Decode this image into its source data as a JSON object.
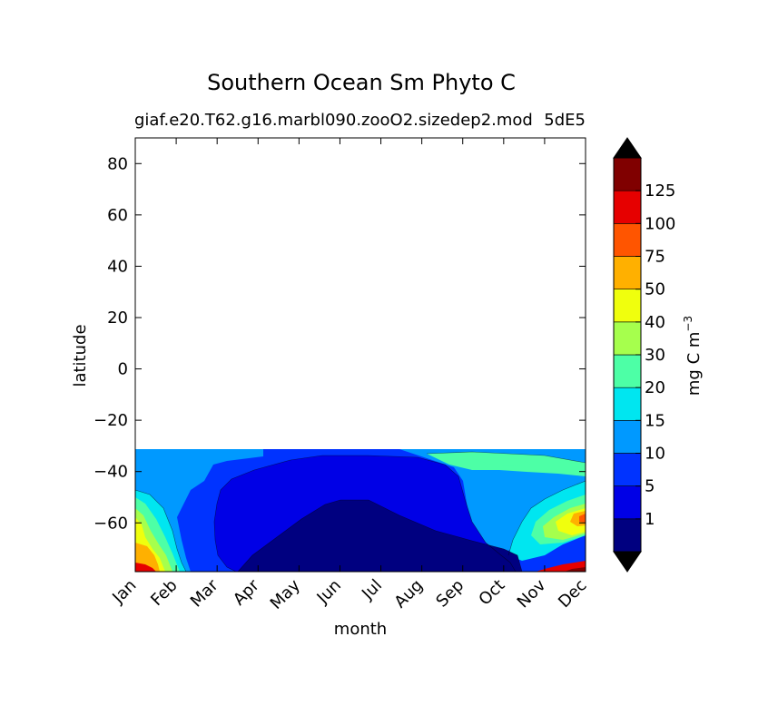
{
  "chart_data": {
    "type": "contourf",
    "title": "Southern Ocean Sm Phyto C",
    "subtitle_left": "giaf.e20.T62.g16.marbl090.zooO2.sizedep2.mod",
    "subtitle_right": "5dE5",
    "xlabel": "month",
    "ylabel": "latitude",
    "x_ticks": [
      "Jan",
      "Feb",
      "Mar",
      "Apr",
      "May",
      "Jun",
      "Jul",
      "Aug",
      "Sep",
      "Oct",
      "Nov",
      "Dec"
    ],
    "y_ticks": [
      80,
      60,
      40,
      20,
      0,
      -20,
      -40,
      -60
    ],
    "y_tick_labels": [
      "80",
      "60",
      "40",
      "20",
      "0",
      "−20",
      "−40",
      "−60"
    ],
    "ylim": [
      -79,
      90
    ],
    "data_lat_range": [
      -79,
      -31
    ],
    "colorbar": {
      "label": "mg C m",
      "label_superscript": "−3",
      "levels": [
        0,
        1,
        5,
        10,
        15,
        20,
        30,
        40,
        50,
        75,
        100,
        125,
        150
      ],
      "tick_labels": [
        "1",
        "5",
        "10",
        "15",
        "20",
        "30",
        "40",
        "50",
        "75",
        "100",
        "125"
      ],
      "extend": "both",
      "colors": [
        "#000080",
        "#0000e6",
        "#0033ff",
        "#0099ff",
        "#00e6f0",
        "#4dffa6",
        "#a6ff4d",
        "#f0ff0d",
        "#ffb000",
        "#ff5500",
        "#e60000",
        "#800000"
      ],
      "under_color": "#000000",
      "over_color": "#000000"
    }
  }
}
